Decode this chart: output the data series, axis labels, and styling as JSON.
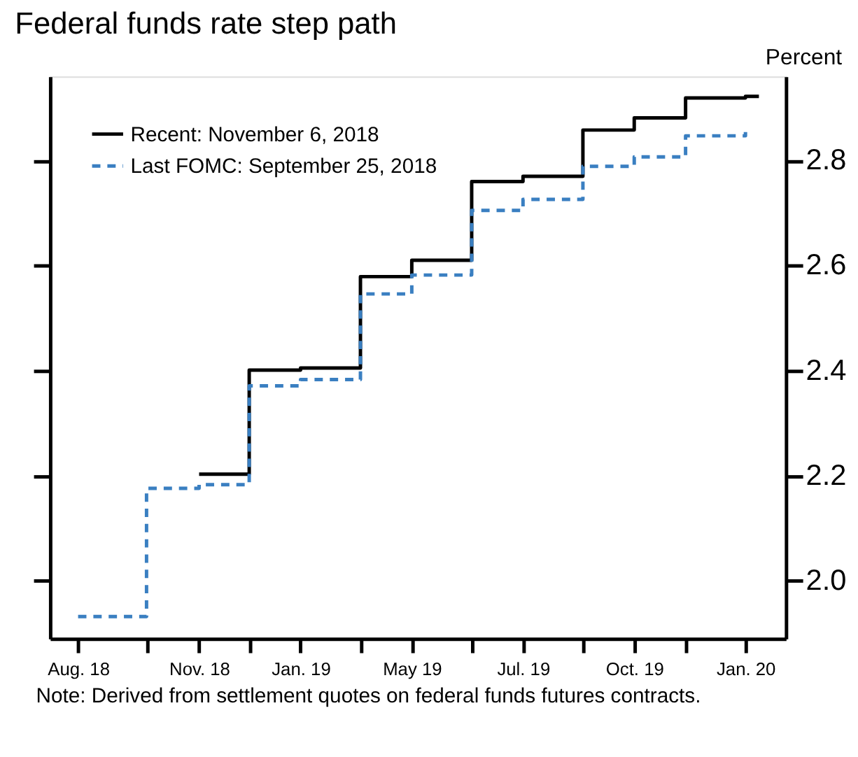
{
  "chart_data": {
    "type": "step",
    "title": "Federal funds rate step path",
    "ylabel": "Percent",
    "annotations": [
      "Note: Derived from settlement quotes on federal funds futures contracts."
    ],
    "series": [
      {
        "name": "Recent:  November  6, 2018",
        "color": "#000000",
        "line_style": "solid",
        "x": [
          "2018-11-08",
          "2018-12-19",
          "2019-01-30",
          "2019-03-20",
          "2019-05-01",
          "2019-06-19",
          "2019-07-31",
          "2019-09-18",
          "2019-10-30",
          "2019-12-11",
          "2020-01-29",
          "2020-02-09"
        ],
        "values": [
          2.203,
          2.401,
          2.405,
          2.579,
          2.61,
          2.76,
          2.77,
          2.858,
          2.881,
          2.919,
          2.922,
          2.922
        ]
      },
      {
        "name": "Last FOMC:  September 25, 2018",
        "color": "#3a7fc1",
        "line_style": "dashed",
        "x": [
          "2018-08-01",
          "2018-09-26",
          "2018-11-08",
          "2018-12-19",
          "2019-01-30",
          "2019-03-20",
          "2019-05-01",
          "2019-06-19",
          "2019-07-31",
          "2019-09-18",
          "2019-10-30",
          "2019-12-11",
          "2020-01-29"
        ],
        "values": [
          1.932,
          2.176,
          2.183,
          2.371,
          2.383,
          2.546,
          2.582,
          2.705,
          2.726,
          2.789,
          2.807,
          2.847,
          2.854
        ]
      }
    ],
    "xlim": [
      "2018-07-09",
      "2020-03-02"
    ],
    "xticks": [
      {
        "value": "2018-08-01",
        "label": "Aug. 18"
      },
      {
        "value": "2018-09-26",
        "label": null
      },
      {
        "value": "2018-11-08",
        "label": "Nov. 18"
      },
      {
        "value": "2018-12-19",
        "label": null
      },
      {
        "value": "2019-01-30",
        "label": "Jan. 19"
      },
      {
        "value": "2019-03-20",
        "label": null
      },
      {
        "value": "2019-05-01",
        "label": "May 19"
      },
      {
        "value": "2019-06-19",
        "label": null
      },
      {
        "value": "2019-07-31",
        "label": "Jul. 19"
      },
      {
        "value": "2019-09-18",
        "label": null
      },
      {
        "value": "2019-10-30",
        "label": "Oct. 19"
      },
      {
        "value": "2019-12-11",
        "label": null
      },
      {
        "value": "2020-01-29",
        "label": "Jan. 20"
      }
    ],
    "ylim": [
      1.89,
      2.96
    ],
    "yticks": [
      {
        "value": 2,
        "label": "2.0"
      },
      2.2,
      2.4,
      2.6,
      2.8
    ],
    "grid": false,
    "legend": "top left",
    "marker": "none"
  }
}
